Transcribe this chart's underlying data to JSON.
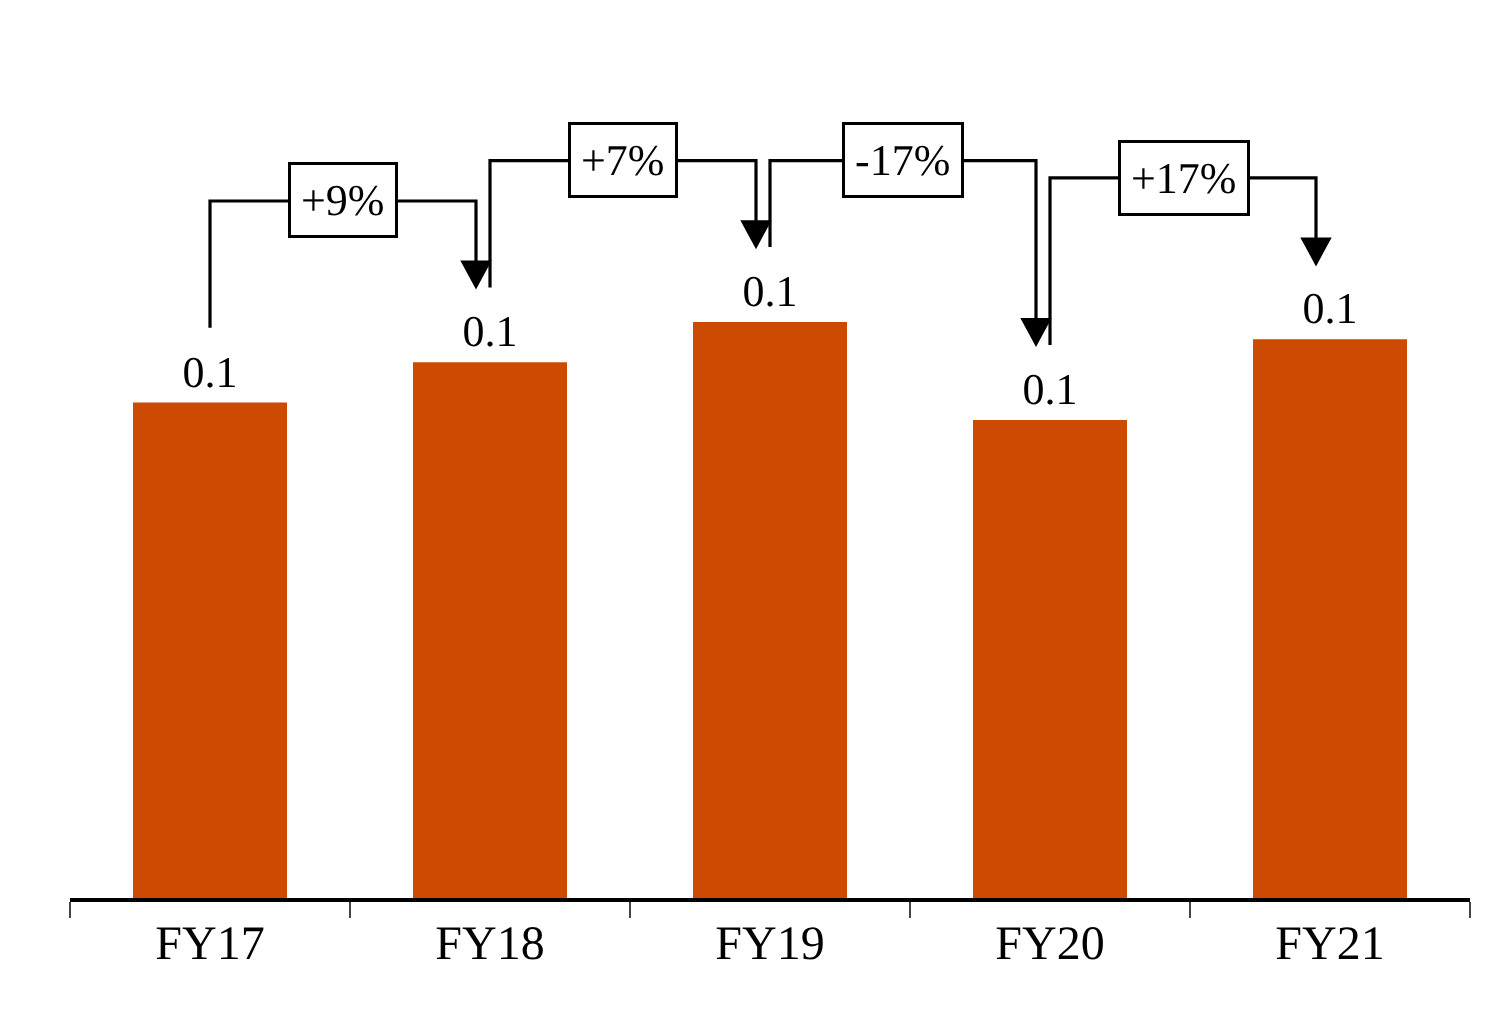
{
  "chart_data": {
    "type": "bar",
    "categories": [
      "FY17",
      "FY18",
      "FY19",
      "FY20",
      "FY21"
    ],
    "values": [
      0.086,
      0.093,
      0.1,
      0.083,
      0.097
    ],
    "value_labels": [
      "0.1",
      "0.1",
      "0.1",
      "0.1",
      "0.1"
    ],
    "color": "#cc4a02",
    "annotations": [
      "+9%",
      "+7%",
      "-17%",
      "+17%"
    ]
  }
}
